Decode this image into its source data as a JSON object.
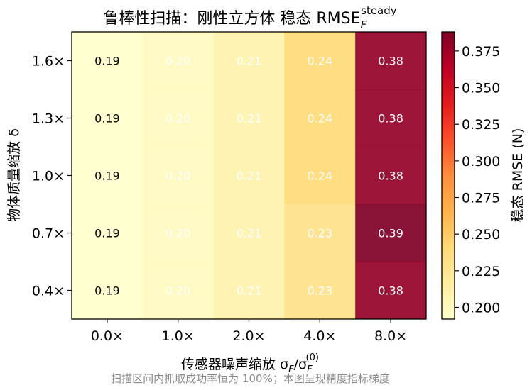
{
  "chart_data": {
    "type": "heatmap",
    "title": "鲁棒性扫描：刚性立方体  稳态 RMSE",
    "title_sub": "F",
    "title_sup": "steady",
    "xlabel": "传感器噪声缩放 σ",
    "xlabel_sub1": "F",
    "xlabel_mid": "/σ",
    "xlabel_sub2": "F",
    "xlabel_sup2": "(0)",
    "ylabel": "物体质量缩放 δ",
    "x_categories": [
      "0.0×",
      "1.0×",
      "2.0×",
      "4.0×",
      "8.0×"
    ],
    "y_categories": [
      "1.6×",
      "1.3×",
      "1.0×",
      "0.7×",
      "0.4×"
    ],
    "values": [
      [
        0.19,
        0.2,
        0.21,
        0.24,
        0.38
      ],
      [
        0.19,
        0.2,
        0.21,
        0.24,
        0.38
      ],
      [
        0.19,
        0.2,
        0.21,
        0.24,
        0.38
      ],
      [
        0.19,
        0.2,
        0.21,
        0.23,
        0.39
      ],
      [
        0.19,
        0.2,
        0.21,
        0.23,
        0.38
      ]
    ],
    "value_labels": [
      [
        "0.19",
        "0.20",
        "0.21",
        "0.24",
        "0.38"
      ],
      [
        "0.19",
        "0.20",
        "0.21",
        "0.24",
        "0.38"
      ],
      [
        "0.19",
        "0.20",
        "0.21",
        "0.24",
        "0.38"
      ],
      [
        "0.19",
        "0.20",
        "0.21",
        "0.23",
        "0.39"
      ],
      [
        "0.19",
        "0.20",
        "0.21",
        "0.23",
        "0.38"
      ]
    ],
    "colorbar": {
      "label": "稳态 RMSE (N)",
      "range": [
        0.192,
        0.388
      ],
      "ticks": [
        0.2,
        0.225,
        0.25,
        0.275,
        0.3,
        0.325,
        0.35,
        0.375
      ],
      "tick_labels": [
        "0.200",
        "0.225",
        "0.250",
        "0.275",
        "0.300",
        "0.325",
        "0.350",
        "0.375"
      ],
      "colormap": "YlOrRd",
      "colormap_stops": [
        "#ffffcc",
        "#ffeda0",
        "#fed976",
        "#feb24c",
        "#fd8d3c",
        "#fc4e2a",
        "#e31a1c",
        "#bd0026",
        "#800026"
      ]
    },
    "label_colors": {
      "dark": "#000000",
      "light": "#ffffff"
    },
    "caption": "扫描区间内抓取成功率恒为 100%；本图呈现精度指标梯度"
  }
}
